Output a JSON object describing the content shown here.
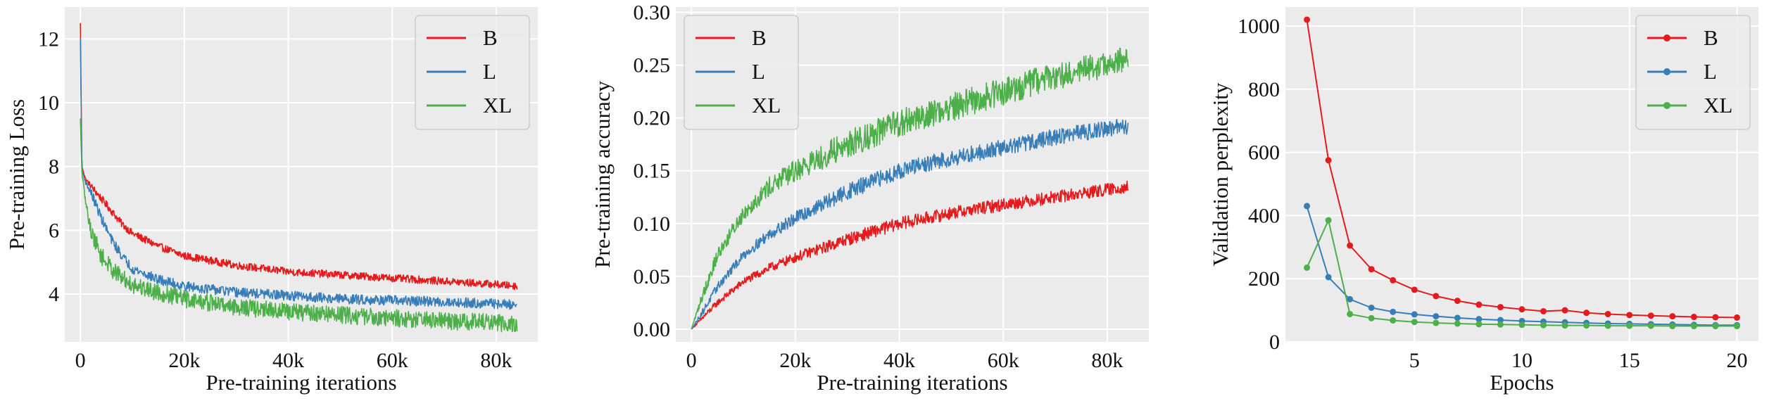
{
  "colors": {
    "B": "#e41a1c",
    "L": "#377eb8",
    "XL": "#4daf4a",
    "panel_bg": "#ebebeb",
    "grid": "#ffffff"
  },
  "chart_data": [
    {
      "type": "line",
      "xlabel": "Pre-training iterations",
      "ylabel": "Pre-training Loss",
      "xlim": [
        -3000,
        88000
      ],
      "ylim": [
        2.5,
        13.0
      ],
      "xticks": [
        0,
        20000,
        40000,
        60000,
        80000
      ],
      "xtick_labels": [
        "0",
        "20k",
        "40k",
        "60k",
        "80k"
      ],
      "yticks": [
        4,
        6,
        8,
        10,
        12
      ],
      "ytick_labels": [
        "4",
        "6",
        "8",
        "10",
        "12"
      ],
      "grid": true,
      "legend": "top-right",
      "noise": 0.12,
      "series": [
        {
          "name": "B",
          "color": "#e41a1c",
          "x": [
            0,
            300,
            1000,
            2000,
            4000,
            6000,
            8000,
            10000,
            15000,
            20000,
            30000,
            40000,
            50000,
            60000,
            70000,
            80000,
            84000
          ],
          "y": [
            12.5,
            8.0,
            7.6,
            7.4,
            7.0,
            6.6,
            6.2,
            5.9,
            5.5,
            5.2,
            4.9,
            4.7,
            4.6,
            4.5,
            4.4,
            4.3,
            4.25
          ]
        },
        {
          "name": "L",
          "color": "#377eb8",
          "x": [
            0,
            300,
            1000,
            2000,
            4000,
            6000,
            8000,
            10000,
            15000,
            20000,
            30000,
            40000,
            50000,
            60000,
            70000,
            80000,
            84000
          ],
          "y": [
            12.0,
            7.9,
            7.5,
            7.2,
            6.4,
            5.7,
            5.2,
            4.8,
            4.45,
            4.25,
            4.05,
            3.95,
            3.85,
            3.8,
            3.75,
            3.7,
            3.65
          ]
        },
        {
          "name": "XL",
          "color": "#4daf4a",
          "x": [
            0,
            300,
            1000,
            2000,
            4000,
            6000,
            8000,
            10000,
            15000,
            20000,
            30000,
            40000,
            50000,
            60000,
            70000,
            80000,
            84000
          ],
          "y": [
            9.5,
            7.8,
            6.9,
            6.0,
            5.2,
            4.8,
            4.5,
            4.3,
            4.05,
            3.85,
            3.6,
            3.45,
            3.35,
            3.25,
            3.15,
            3.1,
            3.05
          ]
        }
      ]
    },
    {
      "type": "line",
      "xlabel": "Pre-training iterations",
      "ylabel": "Pre-training accuracy",
      "xlim": [
        -3000,
        88000
      ],
      "ylim": [
        -0.012,
        0.305
      ],
      "xticks": [
        0,
        20000,
        40000,
        60000,
        80000
      ],
      "xtick_labels": [
        "0",
        "20k",
        "40k",
        "60k",
        "80k"
      ],
      "yticks": [
        0.0,
        0.05,
        0.1,
        0.15,
        0.2,
        0.25,
        0.3
      ],
      "ytick_labels": [
        "0.00",
        "0.05",
        "0.10",
        "0.15",
        "0.20",
        "0.25",
        "0.30"
      ],
      "grid": true,
      "legend": "top-left",
      "noise": 0.006,
      "series": [
        {
          "name": "B",
          "color": "#e41a1c",
          "x": [
            0,
            2000,
            5000,
            10000,
            15000,
            20000,
            30000,
            40000,
            50000,
            60000,
            70000,
            80000,
            84000
          ],
          "y": [
            0.0,
            0.01,
            0.025,
            0.045,
            0.058,
            0.068,
            0.085,
            0.1,
            0.11,
            0.118,
            0.125,
            0.132,
            0.135
          ]
        },
        {
          "name": "L",
          "color": "#377eb8",
          "x": [
            0,
            2000,
            5000,
            10000,
            15000,
            20000,
            30000,
            40000,
            50000,
            60000,
            70000,
            80000,
            84000
          ],
          "y": [
            0.0,
            0.015,
            0.04,
            0.07,
            0.09,
            0.105,
            0.13,
            0.15,
            0.162,
            0.172,
            0.182,
            0.19,
            0.192
          ]
        },
        {
          "name": "XL",
          "color": "#4daf4a",
          "x": [
            0,
            2000,
            5000,
            10000,
            15000,
            20000,
            30000,
            40000,
            50000,
            60000,
            70000,
            80000,
            84000
          ],
          "y": [
            0.0,
            0.03,
            0.07,
            0.11,
            0.135,
            0.15,
            0.175,
            0.195,
            0.21,
            0.225,
            0.24,
            0.25,
            0.255
          ]
        }
      ]
    },
    {
      "type": "line",
      "xlabel": "Epochs",
      "ylabel": "Validation perplexity",
      "xlim": [
        -1,
        21
      ],
      "ylim": [
        0,
        1060
      ],
      "xticks": [
        5,
        10,
        15,
        20
      ],
      "xtick_labels": [
        "5",
        "10",
        "15",
        "20"
      ],
      "yticks": [
        0,
        200,
        400,
        600,
        800,
        1000
      ],
      "ytick_labels": [
        "0",
        "200",
        "400",
        "600",
        "800",
        "1000"
      ],
      "grid": true,
      "legend": "top-right",
      "markers": true,
      "series": [
        {
          "name": "B",
          "color": "#e41a1c",
          "x": [
            0,
            1,
            2,
            3,
            4,
            5,
            6,
            7,
            8,
            9,
            10,
            11,
            12,
            13,
            14,
            15,
            16,
            17,
            18,
            19,
            20
          ],
          "y": [
            1020,
            575,
            305,
            230,
            195,
            165,
            145,
            130,
            118,
            110,
            103,
            97,
            100,
            92,
            88,
            85,
            83,
            81,
            79,
            78,
            77
          ]
        },
        {
          "name": "L",
          "color": "#377eb8",
          "x": [
            0,
            1,
            2,
            3,
            4,
            5,
            6,
            7,
            8,
            9,
            10,
            11,
            12,
            13,
            14,
            15,
            16,
            17,
            18,
            19,
            20
          ],
          "y": [
            430,
            205,
            135,
            108,
            95,
            87,
            81,
            76,
            72,
            69,
            66,
            64,
            62,
            60,
            58,
            57,
            56,
            55,
            54,
            53,
            53
          ]
        },
        {
          "name": "XL",
          "color": "#4daf4a",
          "x": [
            0,
            1,
            2,
            3,
            4,
            5,
            6,
            7,
            8,
            9,
            10,
            11,
            12,
            13,
            14,
            15,
            16,
            17,
            18,
            19,
            20
          ],
          "y": [
            235,
            385,
            88,
            75,
            68,
            63,
            60,
            58,
            56,
            55,
            54,
            53,
            52,
            52,
            51,
            51,
            51,
            50,
            50,
            50,
            50
          ]
        }
      ]
    }
  ]
}
